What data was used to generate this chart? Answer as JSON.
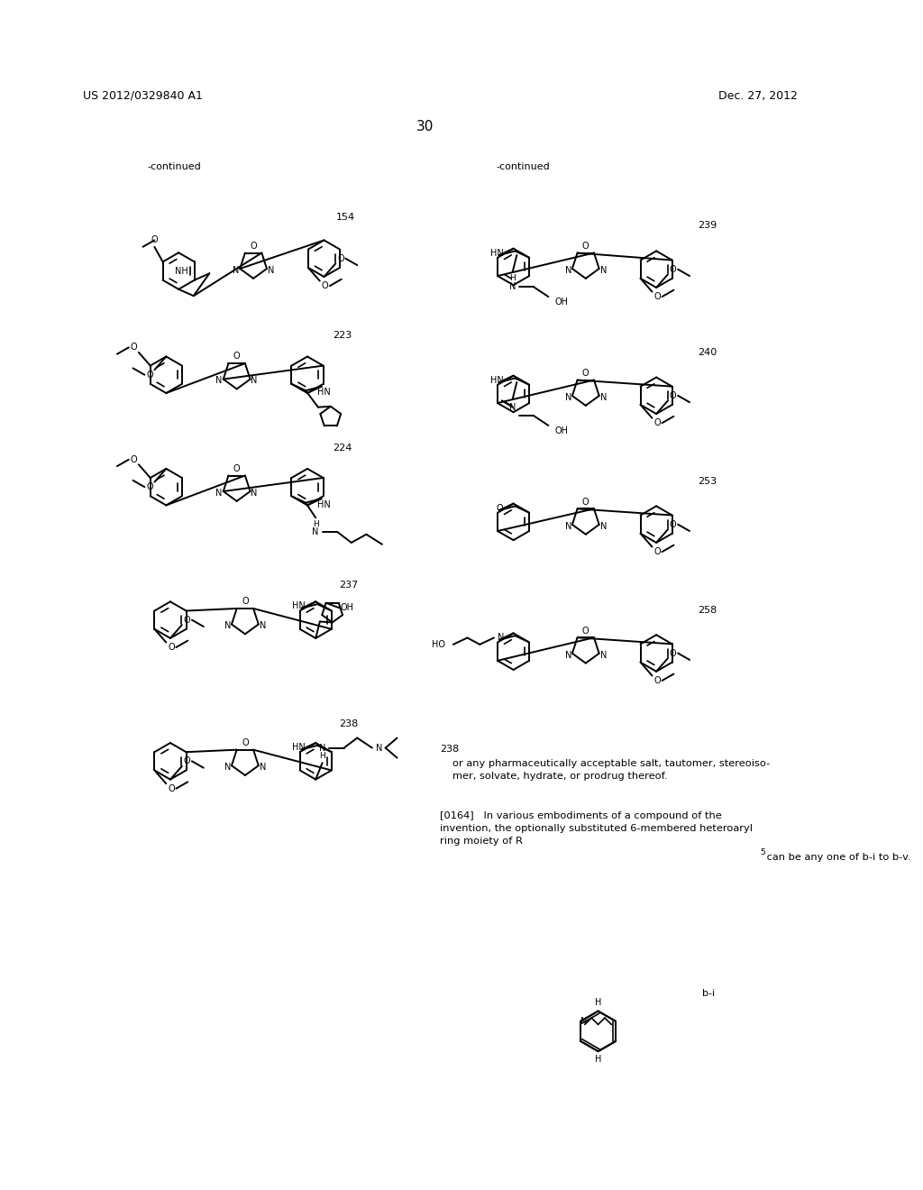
{
  "bg_color": "#ffffff",
  "header_left": "US 2012/0329840 A1",
  "header_right": "Dec. 27, 2012",
  "page_num": "30",
  "cont_left": "-continued",
  "cont_right": "-continued",
  "text1": "or any pharmaceutically acceptable salt, tautomer, stereoiso-\nmer, solvate, hydrate, or prodrug thereof.",
  "text2a": "[0164]   In various embodiments of a compound of the\ninvention, the optionally substituted 6-membered heteroaryl\nring moiety of R",
  "text2b": " can be any one of b-i to b-v.",
  "superscript": "5",
  "label_154": "154",
  "label_223": "223",
  "label_224": "224",
  "label_237": "237",
  "label_238": "238",
  "label_239": "239",
  "label_240": "240",
  "label_253": "253",
  "label_258": "258",
  "label_bi": "b-i"
}
